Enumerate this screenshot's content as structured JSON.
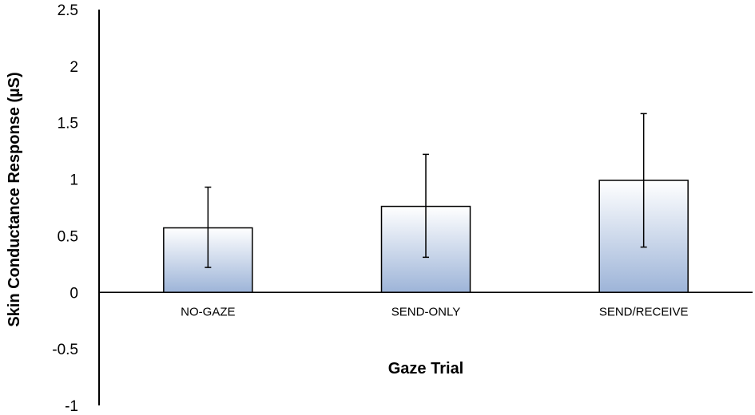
{
  "chart_data": {
    "type": "bar",
    "title": "",
    "xlabel": "Gaze Trial",
    "ylabel": "Skin Conductance Response (µS)",
    "categories": [
      "NO-GAZE",
      "SEND-ONLY",
      "SEND/RECEIVE"
    ],
    "values": [
      0.57,
      0.76,
      0.99
    ],
    "error_bars": [
      {
        "low": 0.22,
        "high": 0.93
      },
      {
        "low": 0.31,
        "high": 1.22
      },
      {
        "low": 0.4,
        "high": 1.58
      }
    ],
    "ylim": [
      -1,
      2.5
    ],
    "yticks": [
      "2.5",
      "2",
      "1.5",
      "1",
      "0.5",
      "0",
      "-0.5",
      "-1"
    ],
    "ytick_values": [
      2.5,
      2,
      1.5,
      1,
      0.5,
      0,
      -0.5,
      -1
    ],
    "grid": false,
    "legend": "none",
    "colors": {
      "bar_top": "#ffffff",
      "bar_bottom": "#9db4d8",
      "bar_stroke": "#000000",
      "axis": "#000000"
    }
  }
}
